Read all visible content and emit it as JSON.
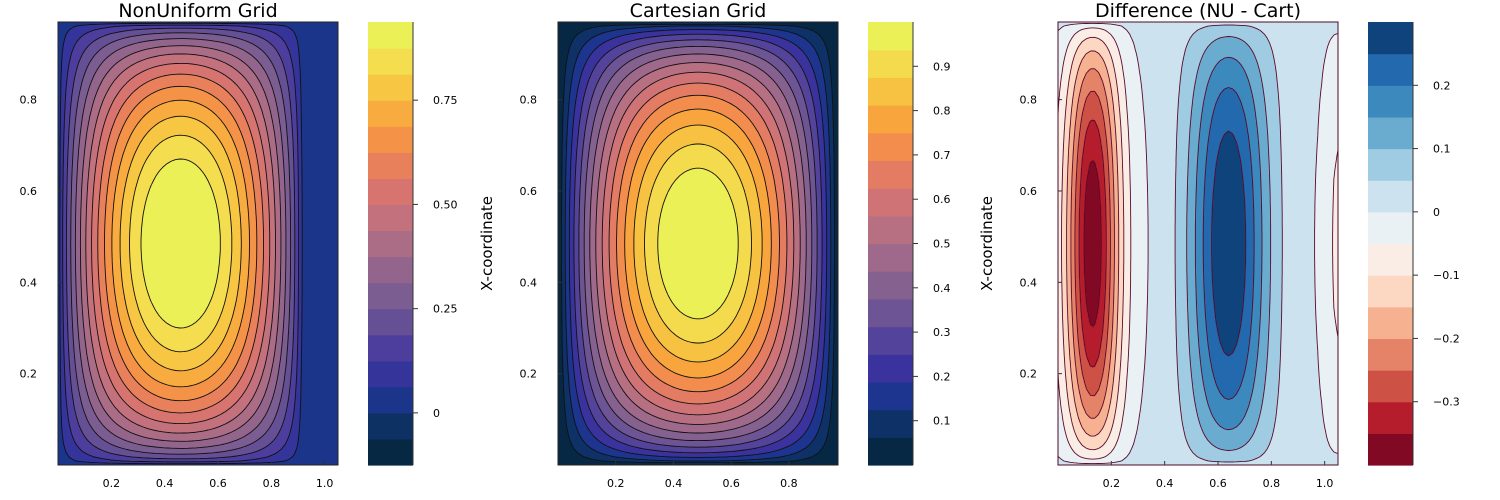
{
  "chart_data": [
    {
      "type": "contour",
      "title": "NonUniform Grid",
      "xlabel": "",
      "ylabel": "",
      "colorbar_label": "X-coordinate",
      "colormap": "thermal",
      "field": "nonuniform",
      "xlim": [
        0,
        1.05
      ],
      "ylim": [
        0,
        0.97
      ],
      "x_ticks": [
        "0.2",
        "0.4",
        "0.6",
        "0.8",
        "1.0"
      ],
      "x_tick_values": [
        0.2,
        0.4,
        0.6,
        0.8,
        1.0
      ],
      "y_ticks": [
        "0.2",
        "0.4",
        "0.6",
        "0.8"
      ],
      "y_tick_values": [
        0.2,
        0.4,
        0.6,
        0.8
      ],
      "levels": [
        -0.125,
        -0.0625,
        0,
        0.0625,
        0.125,
        0.1875,
        0.25,
        0.3125,
        0.375,
        0.4375,
        0.5,
        0.5625,
        0.625,
        0.6875,
        0.75,
        0.8125,
        0.875,
        0.9375
      ],
      "colorbar_ticks": [
        "0",
        "0.25",
        "0.50",
        "0.75"
      ],
      "colorbar_tick_values": [
        0,
        0.25,
        0.5,
        0.75
      ],
      "grid": false
    },
    {
      "type": "contour",
      "title": "Cartesian Grid",
      "xlabel": "",
      "ylabel": "",
      "colorbar_label": "X-coordinate",
      "colormap": "thermal",
      "field": "cartesian",
      "xlim": [
        0,
        0.97
      ],
      "ylim": [
        0,
        0.97
      ],
      "x_ticks": [
        "0.2",
        "0.4",
        "0.6",
        "0.8"
      ],
      "x_tick_values": [
        0.2,
        0.4,
        0.6,
        0.8
      ],
      "y_ticks": [
        "0.2",
        "0.4",
        "0.6",
        "0.8"
      ],
      "y_tick_values": [
        0.2,
        0.4,
        0.6,
        0.8
      ],
      "levels": [
        0,
        0.0625,
        0.125,
        0.1875,
        0.25,
        0.3125,
        0.375,
        0.4375,
        0.5,
        0.5625,
        0.625,
        0.6875,
        0.75,
        0.8125,
        0.875,
        0.9375,
        1.0
      ],
      "colorbar_ticks": [
        "0.1",
        "0.2",
        "0.3",
        "0.4",
        "0.5",
        "0.6",
        "0.7",
        "0.8",
        "0.9"
      ],
      "colorbar_tick_values": [
        0.1,
        0.2,
        0.3,
        0.4,
        0.5,
        0.6,
        0.7,
        0.8,
        0.9
      ],
      "grid": false
    },
    {
      "type": "contour",
      "title": "Difference (NU - Cart)",
      "xlabel": "",
      "ylabel": "",
      "colorbar_label": "",
      "colormap": "RdBu",
      "field": "difference",
      "xlim": [
        0,
        1.05
      ],
      "ylim": [
        0,
        0.97
      ],
      "x_ticks": [
        "0.2",
        "0.4",
        "0.6",
        "0.8",
        "1.0"
      ],
      "x_tick_values": [
        0.2,
        0.4,
        0.6,
        0.8,
        1.0
      ],
      "y_ticks": [
        "0.2",
        "0.4",
        "0.6",
        "0.8"
      ],
      "y_tick_values": [
        0.2,
        0.4,
        0.6,
        0.8
      ],
      "levels": [
        -0.4,
        -0.35,
        -0.3,
        -0.25,
        -0.2,
        -0.15,
        -0.1,
        -0.05,
        0,
        0.05,
        0.1,
        0.15,
        0.2,
        0.25,
        0.3
      ],
      "colorbar_ticks": [
        "0.2",
        "0.1",
        "0",
        "−0.1",
        "−0.2",
        "−0.3"
      ],
      "colorbar_tick_values": [
        0.2,
        0.1,
        0,
        -0.1,
        -0.2,
        -0.3
      ],
      "grid": false
    }
  ]
}
